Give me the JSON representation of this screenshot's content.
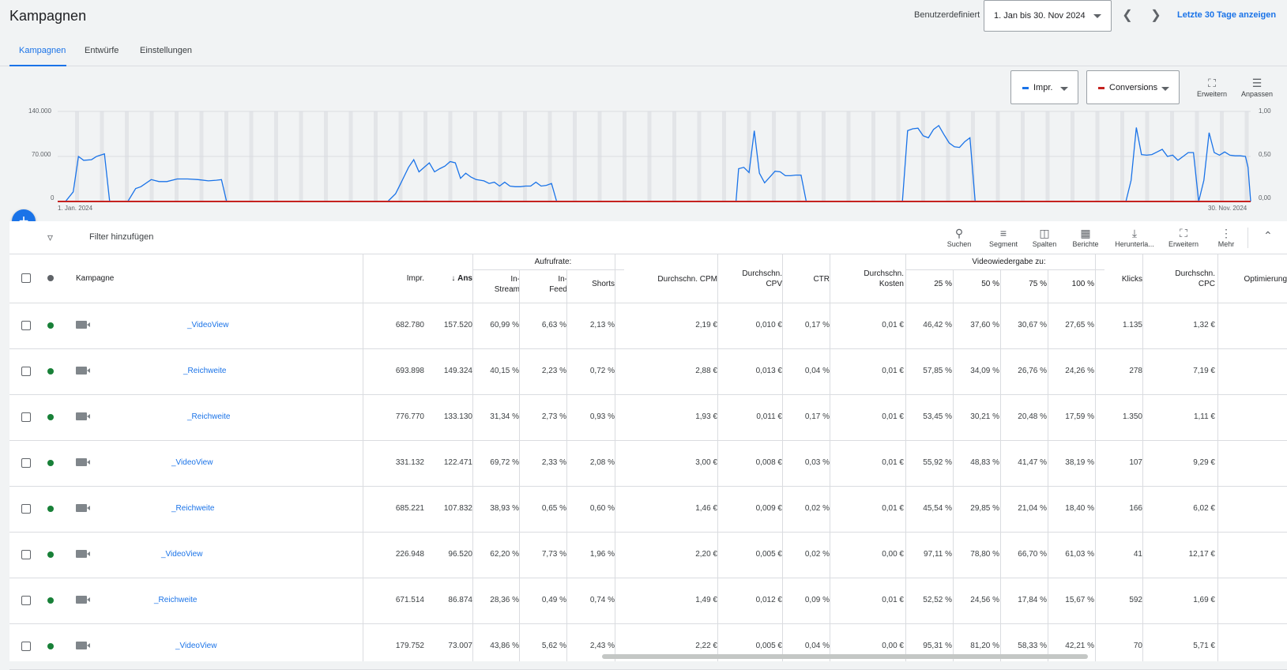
{
  "header": {
    "title": "Kampagnen",
    "daterange_label": "Benutzerdefiniert",
    "daterange_value": "1. Jan bis 30. Nov 2024",
    "prev_icon": "chevron-left-icon",
    "next_icon": "chevron-right-icon",
    "last30_label": "Letzte 30 Tage anzeigen"
  },
  "tabs": [
    {
      "label": "Kampagnen",
      "active": true
    },
    {
      "label": "Entwürfe",
      "active": false
    },
    {
      "label": "Einstellungen",
      "active": false
    }
  ],
  "chart_controls": {
    "metric1": {
      "label": "Impr.",
      "color": "#1a73e8"
    },
    "metric2": {
      "label": "Conversions",
      "color": "#c5221f"
    },
    "expand_label": "Erweitern",
    "adjust_label": "Anpassen"
  },
  "chart_data": {
    "type": "line",
    "x_start_label": "1. Jan. 2024",
    "x_end_label": "30. Nov. 2024",
    "y_left_ticks": [
      "140.000",
      "70.000",
      "0"
    ],
    "y_right_ticks": [
      "1,00",
      "0,50",
      "0,00"
    ],
    "ylim_left": [
      0,
      140000
    ],
    "ylim_right": [
      0,
      1
    ],
    "grid": true,
    "series": [
      {
        "name": "Impr.",
        "color": "#1a73e8",
        "points": [
          [
            0,
            0
          ],
          [
            3,
            0
          ],
          [
            6,
            15000
          ],
          [
            8,
            70000
          ],
          [
            10,
            64000
          ],
          [
            13,
            65000
          ],
          [
            15,
            70000
          ],
          [
            18,
            74000
          ],
          [
            20,
            0
          ],
          [
            27,
            0
          ],
          [
            30,
            20000
          ],
          [
            32,
            23000
          ],
          [
            36,
            34000
          ],
          [
            39,
            31000
          ],
          [
            42,
            31000
          ],
          [
            46,
            35000
          ],
          [
            50,
            35000
          ],
          [
            54,
            34000
          ],
          [
            58,
            32000
          ],
          [
            61,
            33000
          ],
          [
            63,
            34000
          ],
          [
            65,
            0
          ],
          [
            127,
            0
          ],
          [
            130,
            12000
          ],
          [
            132,
            28000
          ],
          [
            135,
            53000
          ],
          [
            137,
            65000
          ],
          [
            139,
            46000
          ],
          [
            141,
            53000
          ],
          [
            143,
            60000
          ],
          [
            145,
            46000
          ],
          [
            147,
            51000
          ],
          [
            149,
            55000
          ],
          [
            151,
            62000
          ],
          [
            153,
            60000
          ],
          [
            155,
            36000
          ],
          [
            157,
            44000
          ],
          [
            159,
            38000
          ],
          [
            161,
            34000
          ],
          [
            164,
            32000
          ],
          [
            166,
            28000
          ],
          [
            168,
            30000
          ],
          [
            170,
            24000
          ],
          [
            172,
            30000
          ],
          [
            174,
            24000
          ],
          [
            176,
            23000
          ],
          [
            178,
            23000
          ],
          [
            180,
            24000
          ],
          [
            182,
            24000
          ],
          [
            184,
            30000
          ],
          [
            186,
            24000
          ],
          [
            188,
            25000
          ],
          [
            190,
            28000
          ],
          [
            192,
            0
          ],
          [
            261,
            0
          ],
          [
            262,
            51000
          ],
          [
            264,
            53000
          ],
          [
            266,
            45000
          ],
          [
            268,
            110000
          ],
          [
            270,
            44000
          ],
          [
            272,
            29000
          ],
          [
            274,
            38000
          ],
          [
            276,
            47000
          ],
          [
            278,
            46000
          ],
          [
            280,
            40000
          ],
          [
            282,
            40000
          ],
          [
            284,
            41000
          ],
          [
            286,
            41000
          ],
          [
            288,
            0
          ],
          [
            325,
            0
          ],
          [
            327,
            110000
          ],
          [
            329,
            113000
          ],
          [
            331,
            114000
          ],
          [
            333,
            102000
          ],
          [
            335,
            99000
          ],
          [
            337,
            112000
          ],
          [
            339,
            118000
          ],
          [
            341,
            104000
          ],
          [
            343,
            91000
          ],
          [
            345,
            85000
          ],
          [
            347,
            84000
          ],
          [
            349,
            93000
          ],
          [
            351,
            99000
          ],
          [
            353,
            0
          ],
          [
            411,
            0
          ],
          [
            413,
            33000
          ],
          [
            415,
            115000
          ],
          [
            417,
            73000
          ],
          [
            419,
            72000
          ],
          [
            421,
            73000
          ],
          [
            423,
            77000
          ],
          [
            425,
            81000
          ],
          [
            427,
            70000
          ],
          [
            429,
            72000
          ],
          [
            431,
            64000
          ],
          [
            433,
            70000
          ],
          [
            435,
            76000
          ],
          [
            437,
            76000
          ],
          [
            439,
            0
          ],
          [
            441,
            33000
          ],
          [
            443,
            107000
          ],
          [
            445,
            76000
          ],
          [
            447,
            72000
          ],
          [
            449,
            77000
          ],
          [
            451,
            72000
          ],
          [
            453,
            71000
          ],
          [
            455,
            71000
          ],
          [
            457,
            70000
          ],
          [
            458,
            53000
          ],
          [
            459,
            0
          ]
        ]
      },
      {
        "name": "Conversions",
        "color": "#c5221f",
        "points": [
          [
            0,
            0
          ],
          [
            459,
            0
          ]
        ]
      }
    ]
  },
  "filterbar": {
    "filter_icon": "filter-icon",
    "filter_text": "Filter hinzufügen",
    "tools": [
      {
        "label": "Suchen",
        "icon": "search-icon"
      },
      {
        "label": "Segment",
        "icon": "segment-icon"
      },
      {
        "label": "Spalten",
        "icon": "columns-icon"
      },
      {
        "label": "Berichte",
        "icon": "reports-icon"
      },
      {
        "label": "Herunterla...",
        "icon": "download-icon"
      },
      {
        "label": "Erweitern",
        "icon": "expand-icon"
      },
      {
        "label": "Mehr",
        "icon": "more-vert-icon"
      }
    ],
    "collapse_icon": "chevron-up-icon"
  },
  "table": {
    "headers": {
      "kampagne": "Kampagne",
      "impr": "Impr.",
      "ans": "Ans",
      "aufrufrate_group": "Aufrufrate:",
      "instream": "In-\nStream",
      "infeed": "In-\nFeed",
      "shorts": "Shorts",
      "cpm": "Durchschn. CPM",
      "cpv": "Durchschn.\nCPV",
      "ctr": "CTR",
      "kosten": "Durchschn.\nKosten",
      "video_group": "Videowiedergabe zu:",
      "p25": "25 %",
      "p50": "50 %",
      "p75": "75 %",
      "p100": "100 %",
      "klicks": "Klicks",
      "cpc": "Durchschn.\nCPC",
      "optim": "Optimierung"
    },
    "rows": [
      {
        "name": "_VideoView",
        "impr": "682.780",
        "ans": "157.520",
        "instream": "60,99 %",
        "infeed": "6,63 %",
        "shorts": "2,13 %",
        "cpm": "2,19 €",
        "cpv": "0,010 €",
        "ctr": "0,17 %",
        "kosten": "0,01 €",
        "p25": "46,42 %",
        "p50": "37,60 %",
        "p75": "30,67 %",
        "p100": "27,65 %",
        "klicks": "1.135",
        "cpc": "1,32 €"
      },
      {
        "name": "_Reichweite",
        "impr": "693.898",
        "ans": "149.324",
        "instream": "40,15 %",
        "infeed": "2,23 %",
        "shorts": "0,72 %",
        "cpm": "2,88 €",
        "cpv": "0,013 €",
        "ctr": "0,04 %",
        "kosten": "0,01 €",
        "p25": "57,85 %",
        "p50": "34,09 %",
        "p75": "26,76 %",
        "p100": "24,26 %",
        "klicks": "278",
        "cpc": "7,19 €"
      },
      {
        "name": "_Reichweite",
        "impr": "776.770",
        "ans": "133.130",
        "instream": "31,34 %",
        "infeed": "2,73 %",
        "shorts": "0,93 %",
        "cpm": "1,93 €",
        "cpv": "0,011 €",
        "ctr": "0,17 %",
        "kosten": "0,01 €",
        "p25": "53,45 %",
        "p50": "30,21 %",
        "p75": "20,48 %",
        "p100": "17,59 %",
        "klicks": "1.350",
        "cpc": "1,11 €"
      },
      {
        "name": "_VideoView",
        "impr": "331.132",
        "ans": "122.471",
        "instream": "69,72 %",
        "infeed": "2,33 %",
        "shorts": "2,08 %",
        "cpm": "3,00 €",
        "cpv": "0,008 €",
        "ctr": "0,03 %",
        "kosten": "0,01 €",
        "p25": "55,92 %",
        "p50": "48,83 %",
        "p75": "41,47 %",
        "p100": "38,19 %",
        "klicks": "107",
        "cpc": "9,29 €"
      },
      {
        "name": "_Reichweite",
        "impr": "685.221",
        "ans": "107.832",
        "instream": "38,93 %",
        "infeed": "0,65 %",
        "shorts": "0,60 %",
        "cpm": "1,46 €",
        "cpv": "0,009 €",
        "ctr": "0,02 %",
        "kosten": "0,01 €",
        "p25": "45,54 %",
        "p50": "29,85 %",
        "p75": "21,04 %",
        "p100": "18,40 %",
        "klicks": "166",
        "cpc": "6,02 €"
      },
      {
        "name": "_VideoView",
        "impr": "226.948",
        "ans": "96.520",
        "instream": "62,20 %",
        "infeed": "7,73 %",
        "shorts": "1,96 %",
        "cpm": "2,20 €",
        "cpv": "0,005 €",
        "ctr": "0,02 %",
        "kosten": "0,00 €",
        "p25": "97,11 %",
        "p50": "78,80 %",
        "p75": "66,70 %",
        "p100": "61,03 %",
        "klicks": "41",
        "cpc": "12,17 €"
      },
      {
        "name": "_Reichweite",
        "impr": "671.514",
        "ans": "86.874",
        "instream": "28,36 %",
        "infeed": "0,49 %",
        "shorts": "0,74 %",
        "cpm": "1,49 €",
        "cpv": "0,012 €",
        "ctr": "0,09 %",
        "kosten": "0,01 €",
        "p25": "52,52 %",
        "p50": "24,56 %",
        "p75": "17,84 %",
        "p100": "15,67 %",
        "klicks": "592",
        "cpc": "1,69 €"
      },
      {
        "name": "_VideoView",
        "impr": "179.752",
        "ans": "73.007",
        "instream": "43,86 %",
        "infeed": "5,62 %",
        "shorts": "2,43 %",
        "cpm": "2,22 €",
        "cpv": "0,005 €",
        "ctr": "0,04 %",
        "kosten": "0,00 €",
        "p25": "95,31 %",
        "p50": "81,20 %",
        "p75": "58,33 %",
        "p100": "42,21 %",
        "klicks": "70",
        "cpc": "5,71 €"
      }
    ]
  }
}
